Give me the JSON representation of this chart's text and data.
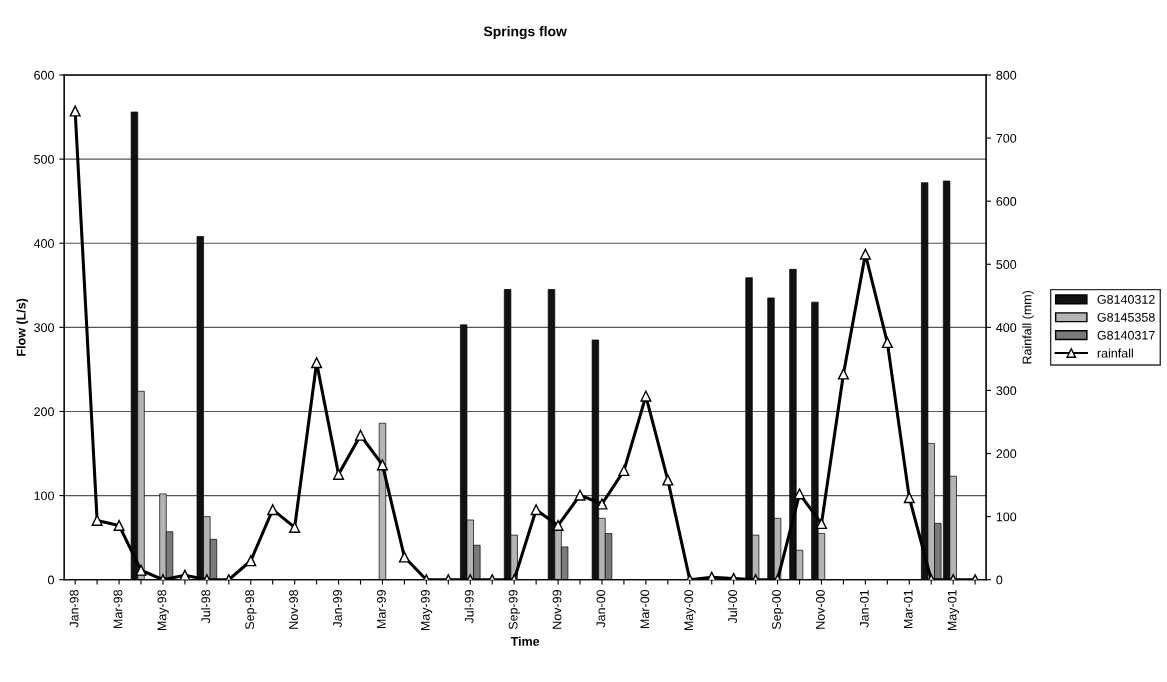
{
  "chart_data": {
    "type": "bar",
    "title": "Springs flow",
    "xlabel": "Time",
    "ylabel": "Flow (L/s)",
    "y2label": "Rainfall (mm)",
    "categories": [
      "Jan-98",
      null,
      "Mar-98",
      null,
      "May-98",
      null,
      "Jul-98",
      null,
      "Sep-98",
      null,
      "Nov-98",
      null,
      "Jan-99",
      null,
      "Mar-99",
      null,
      "May-99",
      null,
      "Jul-99",
      null,
      "Sep-99",
      null,
      "Nov-99",
      null,
      "Jan-00",
      null,
      "Mar-00",
      null,
      "May-00",
      null,
      "Jul-00",
      null,
      "Sep-00",
      null,
      "Nov-00",
      null,
      "Jan-01",
      null,
      "Mar-01",
      null,
      "May-01",
      null
    ],
    "series": [
      {
        "name": "G8140312",
        "color": "#111111",
        "values": [
          null,
          null,
          null,
          556,
          null,
          null,
          408,
          null,
          null,
          null,
          null,
          null,
          null,
          null,
          null,
          null,
          null,
          null,
          303,
          null,
          345,
          null,
          345,
          null,
          285,
          null,
          null,
          null,
          null,
          null,
          null,
          359,
          335,
          369,
          330,
          null,
          null,
          null,
          null,
          472,
          474,
          null
        ]
      },
      {
        "name": "G8145358",
        "color": "#b4b4b4",
        "values": [
          null,
          null,
          null,
          224,
          102,
          null,
          75,
          null,
          null,
          null,
          null,
          null,
          null,
          null,
          186,
          null,
          null,
          null,
          71,
          null,
          53,
          null,
          60,
          null,
          73,
          null,
          null,
          null,
          null,
          null,
          null,
          53,
          73,
          35,
          55,
          null,
          null,
          null,
          null,
          162,
          123,
          null
        ]
      },
      {
        "name": "G8140317",
        "color": "#7a7a7a",
        "values": [
          null,
          null,
          null,
          null,
          57,
          null,
          48,
          null,
          null,
          null,
          null,
          null,
          null,
          null,
          null,
          null,
          null,
          null,
          41,
          null,
          null,
          null,
          39,
          null,
          55,
          null,
          null,
          null,
          null,
          null,
          null,
          null,
          null,
          null,
          null,
          null,
          null,
          null,
          null,
          67,
          null,
          null
        ]
      },
      {
        "name": "rainfall",
        "type": "line",
        "axis": "y2",
        "color": "#000000",
        "marker": "triangle",
        "line_style": "solid",
        "values": [
          743,
          94,
          86,
          15,
          0,
          7,
          0,
          0,
          30,
          111,
          83,
          344,
          167,
          229,
          182,
          36,
          0,
          0,
          0,
          0,
          0,
          111,
          86,
          134,
          120,
          173,
          291,
          158,
          0,
          4,
          2,
          0,
          0,
          136,
          89,
          326,
          516,
          376,
          130,
          0,
          0,
          0
        ]
      }
    ],
    "ylim": [
      0,
      600
    ],
    "yticks": [
      0,
      100,
      200,
      300,
      400,
      500,
      600
    ],
    "y2lim": [
      0,
      800
    ],
    "y2ticks": [
      0,
      100,
      200,
      300,
      400,
      500,
      600,
      700,
      800
    ],
    "grid": "y",
    "legend": "right"
  }
}
